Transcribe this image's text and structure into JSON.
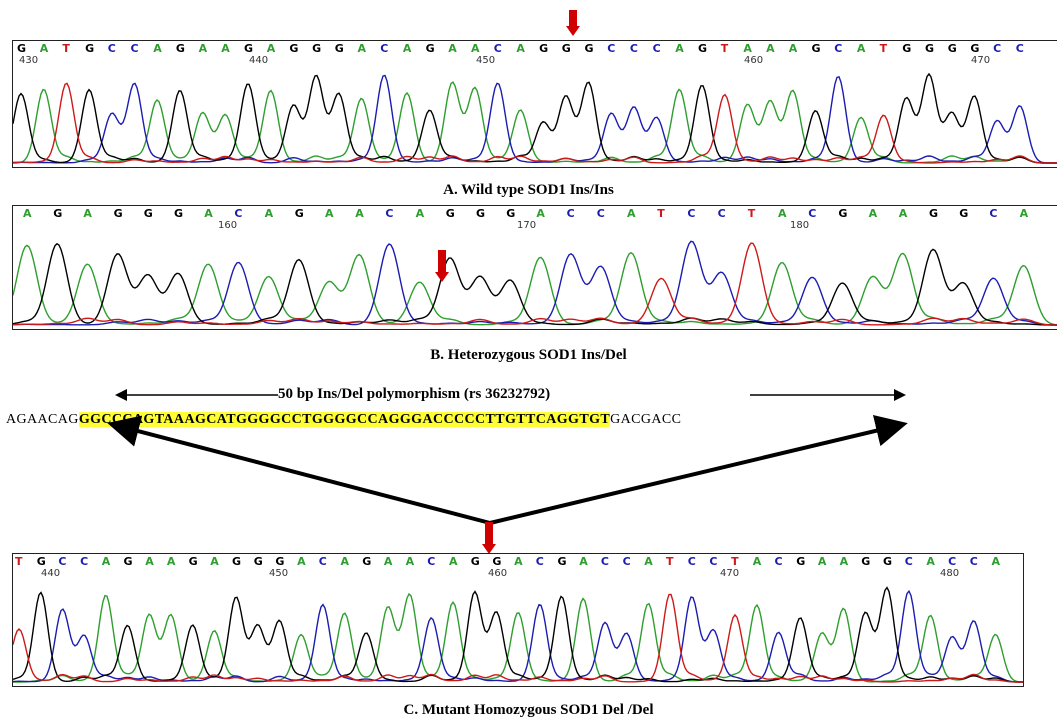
{
  "panelA": {
    "sequence": "GATGCCAGAAGAGGGACAGAACAGGGCCCAGTAAAGCATGGGGCC",
    "positions": [
      "430",
      "440",
      "450",
      "460",
      "470"
    ],
    "caption": "A. Wild type SOD1 Ins/Ins"
  },
  "panelB": {
    "sequence": "AGAGGGACAGAACAGGGACCATCCTACGAAGGCA",
    "positions": [
      "160",
      "170",
      "180"
    ],
    "caption": "B. Heterozygous SOD1 Ins/Del"
  },
  "panelC": {
    "sequence": "TGCCAGAAGAGGGACAGAACAGGACGACCATCCTACGAAGGCACCA",
    "positions": [
      "440",
      "450",
      "460",
      "470",
      "480"
    ],
    "caption": "C. Mutant Homozygous SOD1 Del /Del"
  },
  "polymorphism": {
    "label": "50 bp Ins/Del polymorphism (rs 36232792)",
    "flank_left": "AGAACAG",
    "insert": "GGCCCAGTAAAGCATGGGGCCTGGGGCCAGGGACCCCCTTGTTCAGGTGT",
    "flank_right": "GACGACC"
  },
  "colors": {
    "A": "#2e9e2e",
    "C": "#1c1cb0",
    "G": "#000000",
    "T": "#cc1a1a",
    "marker": "#d10000",
    "highlight": "#ffff33"
  }
}
